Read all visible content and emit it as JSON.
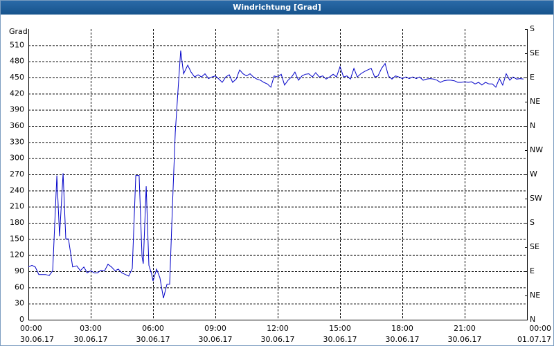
{
  "chart_data": {
    "type": "line",
    "title": "Windrichtung [Grad]",
    "y_label": "Grad",
    "x": [
      0,
      0.17,
      0.33,
      0.5,
      0.83,
      1,
      1.17,
      1.37,
      1.5,
      1.67,
      1.8,
      1.93,
      2.13,
      2.33,
      2.5,
      2.67,
      2.83,
      3,
      3.17,
      3.33,
      3.5,
      3.67,
      3.83,
      4,
      4.17,
      4.33,
      4.5,
      4.67,
      4.83,
      5,
      5.17,
      5.33,
      5.47,
      5.53,
      5.67,
      5.8,
      5.93,
      6,
      6.17,
      6.33,
      6.5,
      6.67,
      6.8,
      6.93,
      7.07,
      7.2,
      7.33,
      7.47,
      7.67,
      7.83,
      8,
      8.17,
      8.33,
      8.5,
      8.67,
      8.83,
      9,
      9.17,
      9.33,
      9.5,
      9.67,
      9.83,
      10,
      10.17,
      10.33,
      10.5,
      10.67,
      10.83,
      11,
      11.17,
      11.33,
      11.5,
      11.67,
      11.83,
      12,
      12.17,
      12.33,
      12.5,
      12.67,
      12.83,
      13,
      13.17,
      13.33,
      13.5,
      13.67,
      13.83,
      14,
      14.17,
      14.33,
      14.5,
      14.67,
      14.83,
      15,
      15.17,
      15.33,
      15.5,
      15.67,
      15.83,
      16,
      16.17,
      16.33,
      16.5,
      16.67,
      16.83,
      17,
      17.17,
      17.33,
      17.5,
      17.67,
      17.83,
      18,
      18.17,
      18.33,
      18.5,
      18.67,
      18.83,
      19,
      19.17,
      19.33,
      19.5,
      19.67,
      19.83,
      20,
      20.17,
      20.33,
      20.5,
      20.67,
      20.83,
      21,
      21.17,
      21.33,
      21.5,
      21.67,
      21.83,
      22,
      22.17,
      22.33,
      22.5,
      22.67,
      22.83,
      23,
      23.17,
      23.33,
      23.5,
      23.67,
      23.83
    ],
    "series": [
      {
        "color": "#0000c8",
        "values": [
          98,
          101,
          98,
          84,
          84,
          82,
          91,
          268,
          155,
          272,
          150,
          150,
          98,
          100,
          91,
          98,
          87,
          91,
          87,
          87,
          92,
          91,
          103,
          98,
          91,
          94,
          87,
          84,
          81,
          95,
          268,
          268,
          117,
          104,
          248,
          101,
          85,
          72,
          94,
          78,
          40,
          66,
          66,
          207,
          348,
          425,
          500,
          457,
          473,
          460,
          451,
          455,
          451,
          457,
          448,
          451,
          453,
          447,
          441,
          451,
          455,
          441,
          447,
          464,
          457,
          453,
          457,
          451,
          447,
          445,
          441,
          438,
          432,
          453,
          451,
          456,
          436,
          445,
          451,
          460,
          445,
          453,
          456,
          457,
          451,
          459,
          451,
          453,
          447,
          451,
          456,
          451,
          470,
          451,
          453,
          447,
          467,
          451,
          457,
          461,
          464,
          467,
          451,
          453,
          467,
          476,
          453,
          447,
          453,
          451,
          448,
          451,
          448,
          451,
          448,
          451,
          445,
          447,
          448,
          447,
          445,
          441,
          444,
          445,
          445,
          444,
          441,
          441,
          442,
          441,
          442,
          438,
          441,
          436,
          441,
          438,
          438,
          432,
          448,
          436,
          457,
          445,
          451,
          447,
          448,
          447
        ]
      }
    ],
    "xlim": [
      0,
      24
    ],
    "xticks": [
      {
        "value": 0,
        "label": "00:00"
      },
      {
        "value": 3,
        "label": "03:00"
      },
      {
        "value": 6,
        "label": "06:00"
      },
      {
        "value": 9,
        "label": "09:00"
      },
      {
        "value": 12,
        "label": "12:00"
      },
      {
        "value": 15,
        "label": "15:00"
      },
      {
        "value": 18,
        "label": "18:00"
      },
      {
        "value": 21,
        "label": "21:00"
      },
      {
        "value": 24,
        "label": "00:00"
      }
    ],
    "xtick_dates": [
      "30.06.17",
      "30.06.17",
      "30.06.17",
      "30.06.17",
      "30.06.17",
      "30.06.17",
      "30.06.17",
      "30.06.17",
      "01.07.17"
    ],
    "ylim": [
      0,
      540
    ],
    "yticks": [
      0,
      30,
      60,
      90,
      120,
      150,
      180,
      210,
      240,
      270,
      300,
      330,
      360,
      390,
      420,
      450,
      480,
      510
    ],
    "y2lim": [
      0,
      540
    ],
    "y2ticks": [
      {
        "value": 0,
        "label": "N"
      },
      {
        "value": 45,
        "label": "NE"
      },
      {
        "value": 90,
        "label": "E"
      },
      {
        "value": 135,
        "label": "SE"
      },
      {
        "value": 180,
        "label": "S"
      },
      {
        "value": 225,
        "label": "SW"
      },
      {
        "value": 270,
        "label": "W"
      },
      {
        "value": 315,
        "label": "NW"
      },
      {
        "value": 360,
        "label": "N"
      },
      {
        "value": 405,
        "label": "NE"
      },
      {
        "value": 450,
        "label": "E"
      },
      {
        "value": 495,
        "label": "SE"
      },
      {
        "value": 540,
        "label": "S"
      }
    ],
    "grid": true
  }
}
